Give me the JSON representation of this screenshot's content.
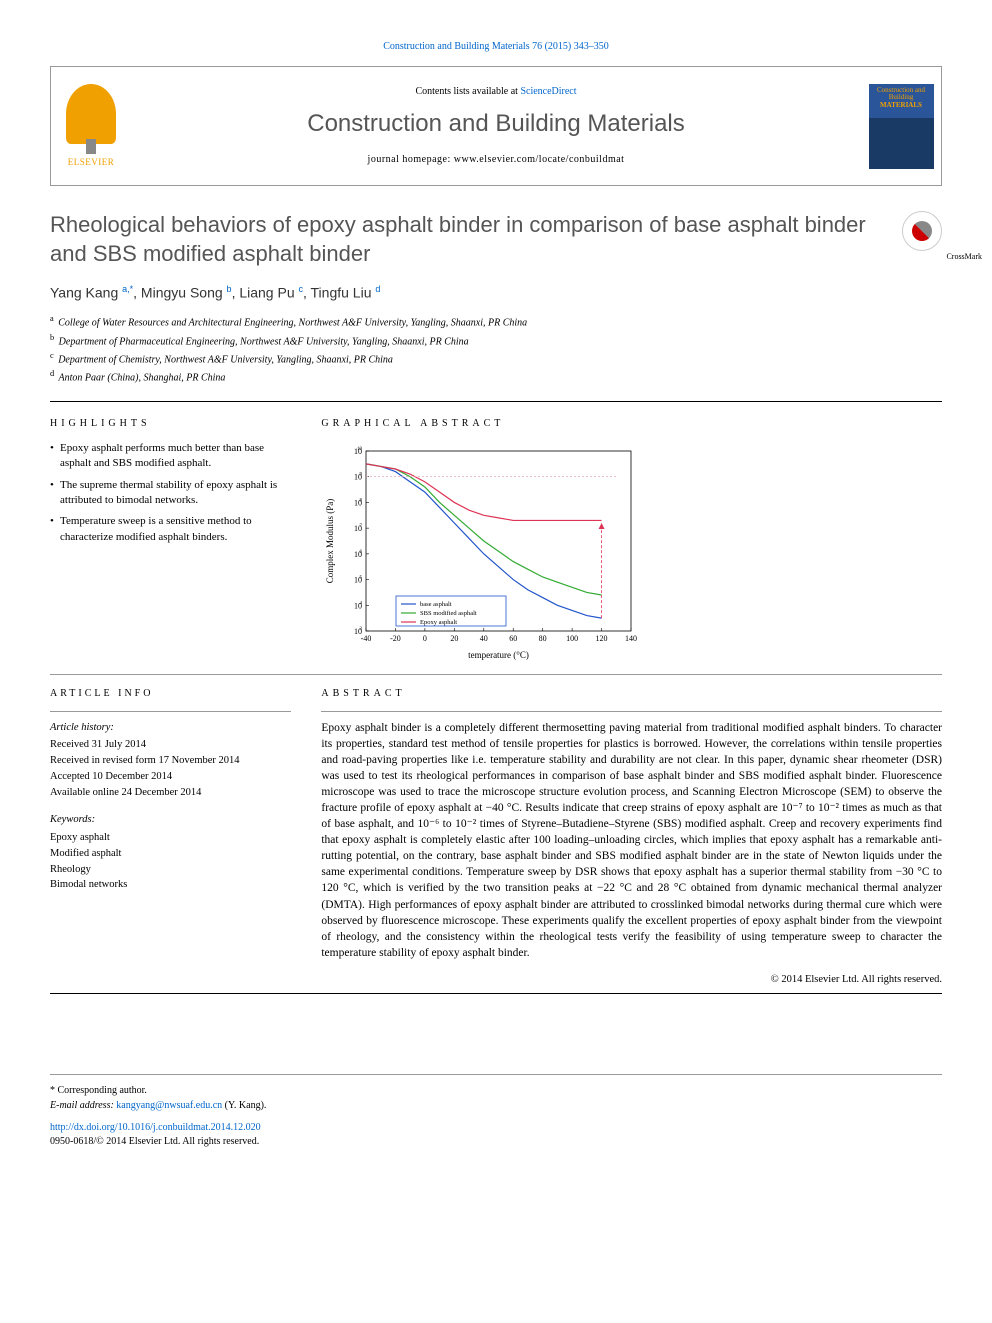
{
  "citation": "Construction and Building Materials 76 (2015) 343–350",
  "header": {
    "contents_prefix": "Contents lists available at ",
    "contents_link": "ScienceDirect",
    "journal_name": "Construction and Building Materials",
    "homepage_prefix": "journal homepage: ",
    "homepage_url": "www.elsevier.com/locate/conbuildmat",
    "publisher": "ELSEVIER",
    "cover_text_top": "Construction and Building",
    "cover_text_bottom": "MATERIALS"
  },
  "title": "Rheological behaviors of epoxy asphalt binder in comparison of base asphalt binder and SBS modified asphalt binder",
  "crossmark_label": "CrossMark",
  "authors_html": "Yang Kang <sup>a,*</sup>, Mingyu Song <sup>b</sup>, Liang Pu <sup>c</sup>, Tingfu Liu <sup>d</sup>",
  "affiliations": [
    {
      "sup": "a",
      "text": "College of Water Resources and Architectural Engineering, Northwest A&F University, Yangling, Shaanxi, PR China"
    },
    {
      "sup": "b",
      "text": "Department of Pharmaceutical Engineering, Northwest A&F University, Yangling, Shaanxi, PR China"
    },
    {
      "sup": "c",
      "text": "Department of Chemistry, Northwest A&F University, Yangling, Shaanxi, PR China"
    },
    {
      "sup": "d",
      "text": "Anton Paar (China), Shanghai, PR China"
    }
  ],
  "highlights_label": "HIGHLIGHTS",
  "highlights": [
    "Epoxy asphalt performs much better than base asphalt and SBS modified asphalt.",
    "The supreme thermal stability of epoxy asphalt is attributed to bimodal networks.",
    "Temperature sweep is a sensitive method to characterize modified asphalt binders."
  ],
  "graphical_label": "GRAPHICAL ABSTRACT",
  "chart": {
    "type": "line-loglog",
    "xlabel": "temperature (°C)",
    "ylabel": "Complex Modulus (Pa)",
    "xlim": [
      -40,
      140
    ],
    "xticks": [
      -40,
      -20,
      0,
      20,
      40,
      60,
      80,
      100,
      120,
      140
    ],
    "ylim_exp": [
      3,
      10
    ],
    "yticks_exp": [
      3,
      4,
      5,
      6,
      7,
      8,
      9,
      10
    ],
    "series": [
      {
        "name": "base asphalt",
        "color": "#2255cc",
        "x": [
          -40,
          -30,
          -20,
          -10,
          0,
          10,
          20,
          30,
          40,
          50,
          60,
          70,
          80,
          90,
          100,
          110,
          120
        ],
        "y_exp": [
          9.5,
          9.4,
          9.2,
          8.8,
          8.4,
          7.8,
          7.2,
          6.6,
          6.0,
          5.5,
          5.0,
          4.6,
          4.3,
          4.0,
          3.8,
          3.6,
          3.5
        ]
      },
      {
        "name": "SBS modified asphalt",
        "color": "#33aa33",
        "x": [
          -40,
          -30,
          -20,
          -10,
          0,
          10,
          20,
          30,
          40,
          50,
          60,
          70,
          80,
          90,
          100,
          110,
          120
        ],
        "y_exp": [
          9.5,
          9.4,
          9.3,
          9.0,
          8.6,
          8.0,
          7.5,
          7.0,
          6.5,
          6.1,
          5.7,
          5.4,
          5.1,
          4.9,
          4.7,
          4.5,
          4.4
        ]
      },
      {
        "name": "Epoxy asphalt",
        "color": "#dd3355",
        "x": [
          -40,
          -30,
          -20,
          -10,
          0,
          10,
          20,
          30,
          40,
          50,
          60,
          70,
          80,
          90,
          100,
          110,
          120
        ],
        "y_exp": [
          9.5,
          9.4,
          9.3,
          9.1,
          8.8,
          8.4,
          8.0,
          7.7,
          7.5,
          7.4,
          7.3,
          7.3,
          7.3,
          7.3,
          7.3,
          7.3,
          7.3
        ]
      }
    ],
    "legend_border": "#2255cc",
    "background": "#ffffff",
    "axis_color": "#000000",
    "tick_fontsize": 8,
    "label_fontsize": 9
  },
  "article_info_label": "ARTICLE INFO",
  "article_history_label": "Article history:",
  "history": [
    "Received 31 July 2014",
    "Received in revised form 17 November 2014",
    "Accepted 10 December 2014",
    "Available online 24 December 2014"
  ],
  "keywords_label": "Keywords:",
  "keywords": [
    "Epoxy asphalt",
    "Modified asphalt",
    "Rheology",
    "Bimodal networks"
  ],
  "abstract_label": "ABSTRACT",
  "abstract": "Epoxy asphalt binder is a completely different thermosetting paving material from traditional modified asphalt binders. To character its properties, standard test method of tensile properties for plastics is borrowed. However, the correlations within tensile properties and road-paving properties like i.e. temperature stability and durability are not clear. In this paper, dynamic shear rheometer (DSR) was used to test its rheological performances in comparison of base asphalt binder and SBS modified asphalt binder. Fluorescence microscope was used to trace the microscope structure evolution process, and Scanning Electron Microscope (SEM) to observe the fracture profile of epoxy asphalt at −40 °C. Results indicate that creep strains of epoxy asphalt are 10⁻⁷ to 10⁻² times as much as that of base asphalt, and 10⁻⁶ to 10⁻² times of Styrene–Butadiene–Styrene (SBS) modified asphalt. Creep and recovery experiments find that epoxy asphalt is completely elastic after 100 loading–unloading circles, which implies that epoxy asphalt has a remarkable anti-rutting potential, on the contrary, base asphalt binder and SBS modified asphalt binder are in the state of Newton liquids under the same experimental conditions. Temperature sweep by DSR shows that epoxy asphalt has a superior thermal stability from −30 °C to 120 °C, which is verified by the two transition peaks at −22 °C and 28 °C obtained from dynamic mechanical thermal analyzer (DMTA). High performances of epoxy asphalt binder are attributed to crosslinked bimodal networks during thermal cure which were observed by fluorescence microscope. These experiments qualify the excellent properties of epoxy asphalt binder from the viewpoint of rheology, and the consistency within the rheological tests verify the feasibility of using temperature sweep to character the temperature stability of epoxy asphalt binder.",
  "copyright": "© 2014 Elsevier Ltd. All rights reserved.",
  "footer": {
    "corresponding_prefix": "* Corresponding author.",
    "email_prefix": "E-mail address: ",
    "email": "kangyang@nwsuaf.edu.cn",
    "email_suffix": " (Y. Kang).",
    "doi": "http://dx.doi.org/10.1016/j.conbuildmat.2014.12.020",
    "issn_line": "0950-0618/© 2014 Elsevier Ltd. All rights reserved."
  }
}
